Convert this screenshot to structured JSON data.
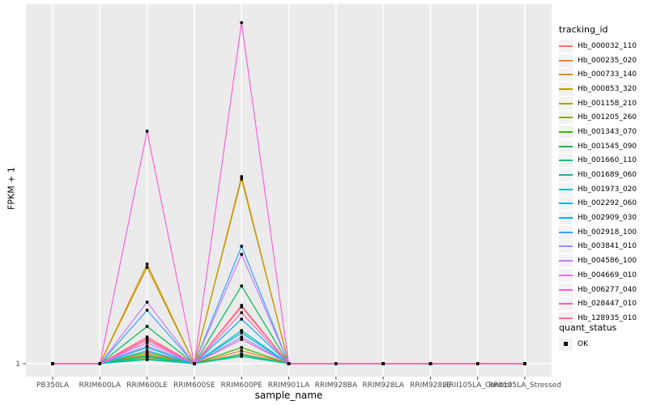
{
  "chart_data": {
    "type": "line",
    "title": "",
    "xlabel": "sample_name",
    "ylabel": "FPKM + 1",
    "x_categories": [
      "PB350LA",
      "RRIM600LA",
      "RRIM600LE",
      "RRIM600SE",
      "RRIM600PE",
      "RRIM901LA",
      "RRIM928BA",
      "RRIM928LA",
      "RRIM928LE",
      "RRII105LA_Control",
      "RRII105LA_Stressed"
    ],
    "y_ticks": [
      {
        "value": 1,
        "label": "1"
      }
    ],
    "ylim": [
      1,
      450
    ],
    "y_scale_note": "only the value 1 is labeled on the y axis; series values are estimated relative heights",
    "panel_bg": "#EBEBEB",
    "grid_color": "#FFFFFF",
    "tick_color": "#333333",
    "tick_label_color": "#4a4a4a",
    "point": {
      "shape": "filled-square",
      "color": "#000000",
      "size": 3.4
    },
    "legend": {
      "title": "tracking_id",
      "position": "right"
    },
    "legend2": {
      "title": "quant_status",
      "entries": [
        {
          "label": "OK",
          "marker": "black-square"
        }
      ]
    },
    "series": [
      {
        "name": "Hb_000032_110",
        "color": "#F8766D",
        "values": [
          1,
          1,
          32,
          1,
          71,
          1,
          1,
          1,
          1,
          1,
          1
        ]
      },
      {
        "name": "Hb_000235_020",
        "color": "#EA8331",
        "values": [
          1,
          1,
          13,
          1,
          17,
          1,
          1,
          1,
          1,
          1,
          1
        ]
      },
      {
        "name": "Hb_000733_140",
        "color": "#D89000",
        "values": [
          1,
          1,
          124,
          1,
          232,
          1,
          1,
          1,
          1,
          1,
          1
        ]
      },
      {
        "name": "Hb_000853_320",
        "color": "#C09B00",
        "values": [
          1,
          1,
          120,
          1,
          229,
          1,
          1,
          1,
          1,
          1,
          1
        ]
      },
      {
        "name": "Hb_001158_210",
        "color": "#A3A500",
        "values": [
          1,
          1,
          9,
          1,
          13,
          1,
          1,
          1,
          1,
          1,
          1
        ]
      },
      {
        "name": "Hb_001205_260",
        "color": "#7CAE00",
        "values": [
          1,
          1,
          15,
          1,
          31,
          1,
          1,
          1,
          1,
          1,
          1
        ]
      },
      {
        "name": "Hb_001343_070",
        "color": "#39B600",
        "values": [
          1,
          1,
          11,
          1,
          21,
          1,
          1,
          1,
          1,
          1,
          1
        ]
      },
      {
        "name": "Hb_001545_090",
        "color": "#00BB4E",
        "values": [
          1,
          1,
          47,
          1,
          97,
          1,
          1,
          1,
          1,
          1,
          1
        ]
      },
      {
        "name": "Hb_001660_110",
        "color": "#00C087",
        "values": [
          1,
          1,
          7,
          1,
          12,
          1,
          1,
          1,
          1,
          1,
          1
        ]
      },
      {
        "name": "Hb_001689_060",
        "color": "#00C1A3",
        "values": [
          1,
          1,
          6,
          1,
          10,
          1,
          1,
          1,
          1,
          1,
          1
        ]
      },
      {
        "name": "Hb_001973_020",
        "color": "#00BFC4",
        "values": [
          1,
          1,
          10,
          1,
          42,
          1,
          1,
          1,
          1,
          1,
          1
        ]
      },
      {
        "name": "Hb_002292_060",
        "color": "#00BAE0",
        "values": [
          1,
          1,
          17,
          1,
          39,
          1,
          1,
          1,
          1,
          1,
          1
        ]
      },
      {
        "name": "Hb_002909_030",
        "color": "#00B0F6",
        "values": [
          1,
          1,
          21,
          1,
          56,
          1,
          1,
          1,
          1,
          1,
          1
        ]
      },
      {
        "name": "Hb_002918_100",
        "color": "#35A2FF",
        "values": [
          1,
          1,
          67,
          1,
          146,
          1,
          1,
          1,
          1,
          1,
          1
        ]
      },
      {
        "name": "Hb_003841_010",
        "color": "#9590FF",
        "values": [
          1,
          1,
          23,
          1,
          34,
          1,
          1,
          1,
          1,
          1,
          1
        ]
      },
      {
        "name": "Hb_004586_100",
        "color": "#C77CFF",
        "values": [
          1,
          1,
          77,
          1,
          136,
          1,
          1,
          1,
          1,
          1,
          1
        ]
      },
      {
        "name": "Hb_004669_010",
        "color": "#E76BF3",
        "values": [
          1,
          1,
          27,
          1,
          31,
          1,
          1,
          1,
          1,
          1,
          1
        ]
      },
      {
        "name": "Hb_006277_040",
        "color": "#FA62DB",
        "values": [
          1,
          1,
          288,
          1,
          422,
          1,
          1,
          1,
          1,
          1,
          1
        ]
      },
      {
        "name": "Hb_028447_010",
        "color": "#FF62BC",
        "values": [
          1,
          1,
          30,
          1,
          64,
          1,
          1,
          1,
          1,
          1,
          1
        ]
      },
      {
        "name": "Hb_128935_010",
        "color": "#FF6A98",
        "values": [
          1,
          1,
          34,
          1,
          73,
          1,
          1,
          1,
          1,
          1,
          1
        ]
      }
    ]
  }
}
